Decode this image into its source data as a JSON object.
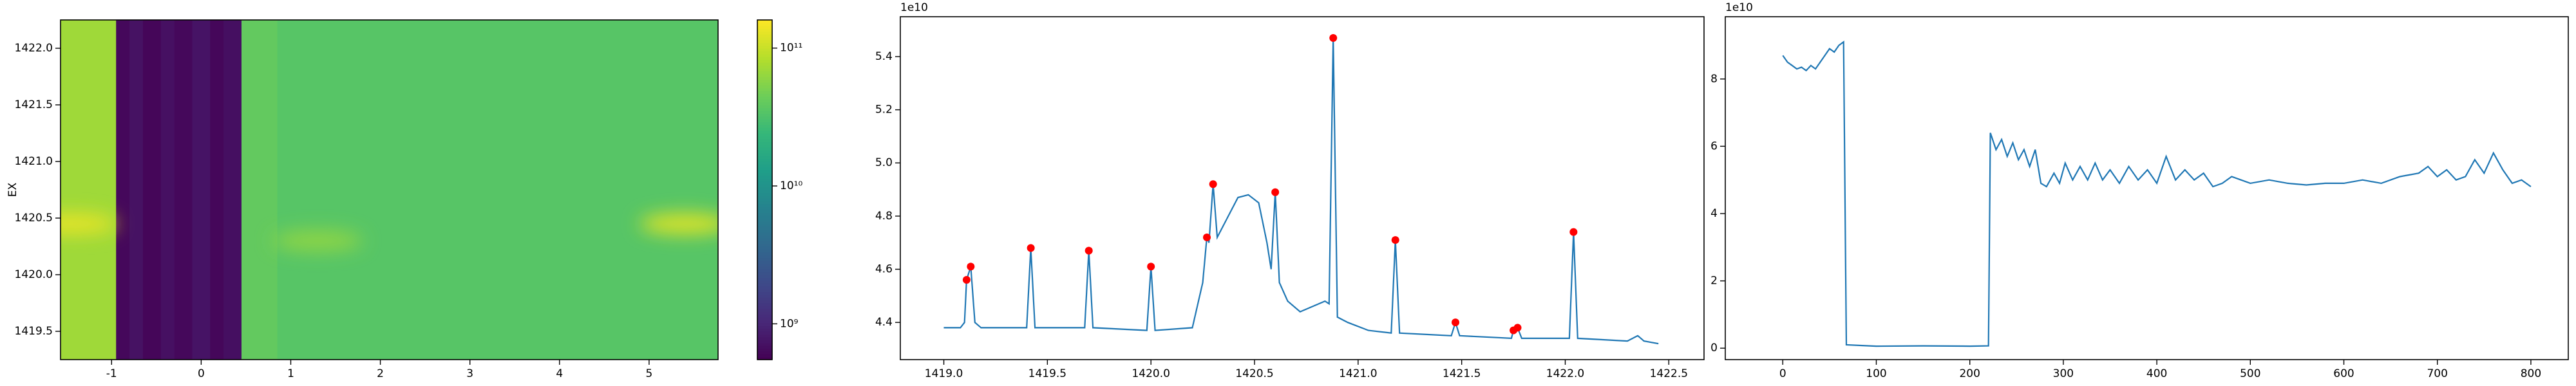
{
  "chart_data": [
    {
      "type": "heatmap",
      "ylabel": "EX",
      "xlim": [
        -1.57,
        5.77
      ],
      "xticks": [
        -1,
        0,
        1,
        2,
        3,
        4,
        5
      ],
      "ylim": [
        1419.25,
        1422.25
      ],
      "yticks": [
        1419.5,
        {
          "value": 1420,
          "label": "1420.0"
        },
        1420.5,
        {
          "value": 1421,
          "label": "1421.0"
        },
        1421.5,
        {
          "value": 1422,
          "label": "1422.0"
        }
      ],
      "colormap": "viridis",
      "color_scale": "log",
      "clim": [
        550000000,
        160000000000
      ],
      "cticks": [
        {
          "value": 1000000000,
          "label": "10⁹"
        },
        {
          "value": 10000000000,
          "label": "10¹⁰"
        },
        {
          "value": 100000000000,
          "label": "10¹¹"
        }
      ],
      "bands": [
        {
          "x0": -1.57,
          "x1": -0.95,
          "value": 70000000000
        },
        {
          "x0": -0.95,
          "x1": -0.8,
          "value": 620000000
        },
        {
          "x0": -0.8,
          "x1": -0.65,
          "value": 720000000
        },
        {
          "x0": -0.65,
          "x1": -0.45,
          "value": 600000000
        },
        {
          "x0": -0.45,
          "x1": -0.3,
          "value": 700000000
        },
        {
          "x0": -0.3,
          "x1": -0.1,
          "value": 620000000
        },
        {
          "x0": -0.1,
          "x1": 0.1,
          "value": 740000000
        },
        {
          "x0": 0.1,
          "x1": 0.25,
          "value": 610000000
        },
        {
          "x0": 0.25,
          "x1": 0.45,
          "value": 690000000
        },
        {
          "x0": 0.45,
          "x1": 0.85,
          "value": 40000000000
        },
        {
          "x0": 0.85,
          "x1": 5.77,
          "value": 35000000000
        }
      ],
      "spots": [
        {
          "x": -1.45,
          "y": 1420.45,
          "value": 130000000000
        },
        {
          "x": 1.3,
          "y": 1420.3,
          "value": 60000000000
        },
        {
          "x": 5.4,
          "y": 1420.45,
          "value": 120000000000
        }
      ]
    },
    {
      "type": "line",
      "color": "#1f77b4",
      "y_offset_label": "1e10",
      "xlim": [
        1418.79,
        1422.67
      ],
      "xticks": [
        {
          "value": 1419,
          "label": "1419.0"
        },
        1419.5,
        {
          "value": 1420,
          "label": "1420.0"
        },
        1420.5,
        {
          "value": 1421,
          "label": "1421.0"
        },
        1421.5,
        {
          "value": 1422,
          "label": "1422.0"
        },
        1422.5
      ],
      "ylim": [
        4.26,
        5.55
      ],
      "yticks": [
        4.4,
        4.6,
        4.8,
        {
          "value": 5,
          "label": "5.0"
        },
        5.2,
        5.4
      ],
      "x": [
        1419.0,
        1419.08,
        1419.1,
        1419.11,
        1419.13,
        1419.15,
        1419.18,
        1419.4,
        1419.42,
        1419.44,
        1419.68,
        1419.7,
        1419.72,
        1419.98,
        1420.0,
        1420.02,
        1420.2,
        1420.25,
        1420.27,
        1420.28,
        1420.3,
        1420.32,
        1420.36,
        1420.42,
        1420.47,
        1420.52,
        1420.56,
        1420.58,
        1420.6,
        1420.62,
        1420.66,
        1420.72,
        1420.78,
        1420.84,
        1420.86,
        1420.88,
        1420.9,
        1420.95,
        1421.05,
        1421.16,
        1421.18,
        1421.2,
        1421.45,
        1421.47,
        1421.49,
        1421.74,
        1421.75,
        1421.77,
        1421.79,
        1422.02,
        1422.04,
        1422.06,
        1422.3,
        1422.35,
        1422.38,
        1422.45
      ],
      "values": [
        4.38,
        4.38,
        4.4,
        4.56,
        4.61,
        4.4,
        4.38,
        4.38,
        4.68,
        4.38,
        4.38,
        4.67,
        4.38,
        4.37,
        4.61,
        4.37,
        4.38,
        4.55,
        4.72,
        4.7,
        4.92,
        4.72,
        4.78,
        4.87,
        4.88,
        4.85,
        4.7,
        4.6,
        4.89,
        4.55,
        4.48,
        4.44,
        4.46,
        4.48,
        4.47,
        5.47,
        4.42,
        4.4,
        4.37,
        4.36,
        4.71,
        4.36,
        4.35,
        4.4,
        4.35,
        4.34,
        4.37,
        4.38,
        4.34,
        4.34,
        4.74,
        4.34,
        4.33,
        4.35,
        4.33,
        4.32
      ],
      "peaks": {
        "color": "#ff0000",
        "x": [
          1419.11,
          1419.13,
          1419.42,
          1419.7,
          1420.0,
          1420.27,
          1420.3,
          1420.6,
          1420.88,
          1421.18,
          1421.47,
          1421.75,
          1421.77,
          1422.04
        ],
        "values": [
          4.56,
          4.61,
          4.68,
          4.67,
          4.61,
          4.72,
          4.92,
          4.89,
          5.47,
          4.71,
          4.4,
          4.37,
          4.38,
          4.74
        ]
      }
    },
    {
      "type": "line",
      "color": "#1f77b4",
      "y_offset_label": "1e10",
      "xlim": [
        -61.5,
        840
      ],
      "xticks": [
        0,
        100,
        200,
        300,
        400,
        500,
        600,
        700,
        800
      ],
      "ylim": [
        -0.34,
        9.85
      ],
      "yticks": [
        0,
        2,
        4,
        6,
        8
      ],
      "x": [
        0,
        5,
        10,
        15,
        20,
        25,
        30,
        35,
        40,
        45,
        50,
        55,
        60,
        65,
        68,
        100,
        150,
        200,
        220,
        222,
        228,
        234,
        240,
        246,
        252,
        258,
        264,
        270,
        276,
        282,
        290,
        296,
        302,
        310,
        318,
        326,
        334,
        342,
        350,
        360,
        370,
        380,
        390,
        400,
        410,
        420,
        430,
        440,
        450,
        460,
        470,
        480,
        490,
        500,
        520,
        540,
        560,
        580,
        600,
        620,
        640,
        660,
        680,
        690,
        700,
        710,
        720,
        730,
        740,
        750,
        760,
        770,
        780,
        790,
        800
      ],
      "values": [
        8.7,
        8.5,
        8.4,
        8.3,
        8.35,
        8.25,
        8.4,
        8.3,
        8.5,
        8.7,
        8.9,
        8.8,
        9.0,
        9.1,
        0.1,
        0.06,
        0.07,
        0.06,
        0.07,
        6.4,
        5.9,
        6.2,
        5.7,
        6.1,
        5.6,
        5.9,
        5.4,
        5.9,
        4.9,
        4.8,
        5.2,
        4.9,
        5.5,
        5.0,
        5.4,
        5.0,
        5.5,
        5.0,
        5.3,
        4.9,
        5.4,
        5.0,
        5.3,
        4.9,
        5.7,
        5.0,
        5.3,
        5.0,
        5.2,
        4.8,
        4.9,
        5.1,
        5.0,
        4.9,
        5.0,
        4.9,
        4.85,
        4.9,
        4.9,
        5.0,
        4.9,
        5.1,
        5.2,
        5.4,
        5.1,
        5.3,
        5.0,
        5.1,
        5.6,
        5.2,
        5.8,
        5.3,
        4.9,
        5.0,
        4.8
      ]
    }
  ]
}
